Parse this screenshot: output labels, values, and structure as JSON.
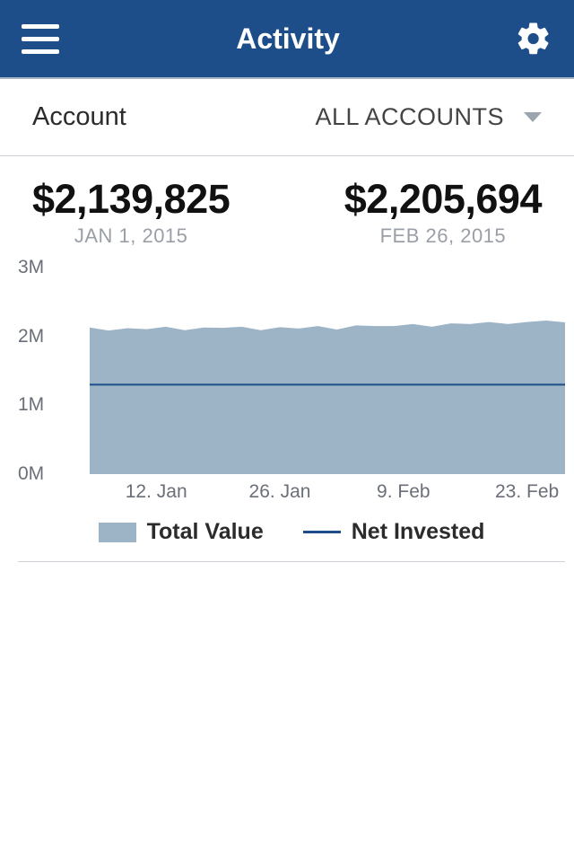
{
  "header": {
    "title": "Activity",
    "bg_color": "#1d4e89",
    "text_color": "#ffffff"
  },
  "account": {
    "label": "Account",
    "selected": "ALL ACCOUNTS"
  },
  "values": {
    "start": {
      "amount": "$2,139,825",
      "date": "JAN 1, 2015"
    },
    "end": {
      "amount": "$2,205,694",
      "date": "FEB 26, 2015"
    }
  },
  "chart": {
    "type": "area+line",
    "area_color": "#9db3c6",
    "line_color": "#1d4e89",
    "background_color": "#ffffff",
    "y": {
      "min": 0,
      "max": 3000000,
      "ticks": [
        {
          "value": 0,
          "label": "0M"
        },
        {
          "value": 1000000,
          "label": "1M"
        },
        {
          "value": 2000000,
          "label": "2M"
        },
        {
          "value": 3000000,
          "label": "3M"
        }
      ],
      "tick_fontsize": 21,
      "tick_color": "#6a6f78"
    },
    "x": {
      "ticks": [
        {
          "pos": 0.14,
          "label": "12. Jan"
        },
        {
          "pos": 0.4,
          "label": "26. Jan"
        },
        {
          "pos": 0.66,
          "label": "9. Feb"
        },
        {
          "pos": 0.92,
          "label": "23. Feb"
        }
      ],
      "tick_fontsize": 21,
      "tick_color": "#6a6f78"
    },
    "series": {
      "total_value": {
        "type": "area",
        "label": "Total Value",
        "color": "#9db3c6",
        "points": [
          [
            0.0,
            2130000
          ],
          [
            0.04,
            2085000
          ],
          [
            0.08,
            2120000
          ],
          [
            0.12,
            2105000
          ],
          [
            0.16,
            2140000
          ],
          [
            0.2,
            2090000
          ],
          [
            0.24,
            2130000
          ],
          [
            0.28,
            2125000
          ],
          [
            0.32,
            2140000
          ],
          [
            0.36,
            2090000
          ],
          [
            0.4,
            2135000
          ],
          [
            0.44,
            2115000
          ],
          [
            0.48,
            2150000
          ],
          [
            0.52,
            2100000
          ],
          [
            0.56,
            2160000
          ],
          [
            0.6,
            2150000
          ],
          [
            0.64,
            2150000
          ],
          [
            0.68,
            2180000
          ],
          [
            0.72,
            2140000
          ],
          [
            0.76,
            2190000
          ],
          [
            0.8,
            2180000
          ],
          [
            0.84,
            2210000
          ],
          [
            0.88,
            2180000
          ],
          [
            0.92,
            2210000
          ],
          [
            0.96,
            2230000
          ],
          [
            1.0,
            2205000
          ]
        ]
      },
      "net_invested": {
        "type": "line",
        "label": "Net Invested",
        "color": "#1d4e89",
        "line_width": 2,
        "points": [
          [
            0.0,
            1300000
          ],
          [
            1.0,
            1300000
          ]
        ]
      }
    },
    "legend": {
      "items": [
        {
          "key": "total_value",
          "label": "Total Value"
        },
        {
          "key": "net_invested",
          "label": "Net Invested"
        }
      ],
      "label_fontsize": 25,
      "label_weight": 600
    }
  }
}
